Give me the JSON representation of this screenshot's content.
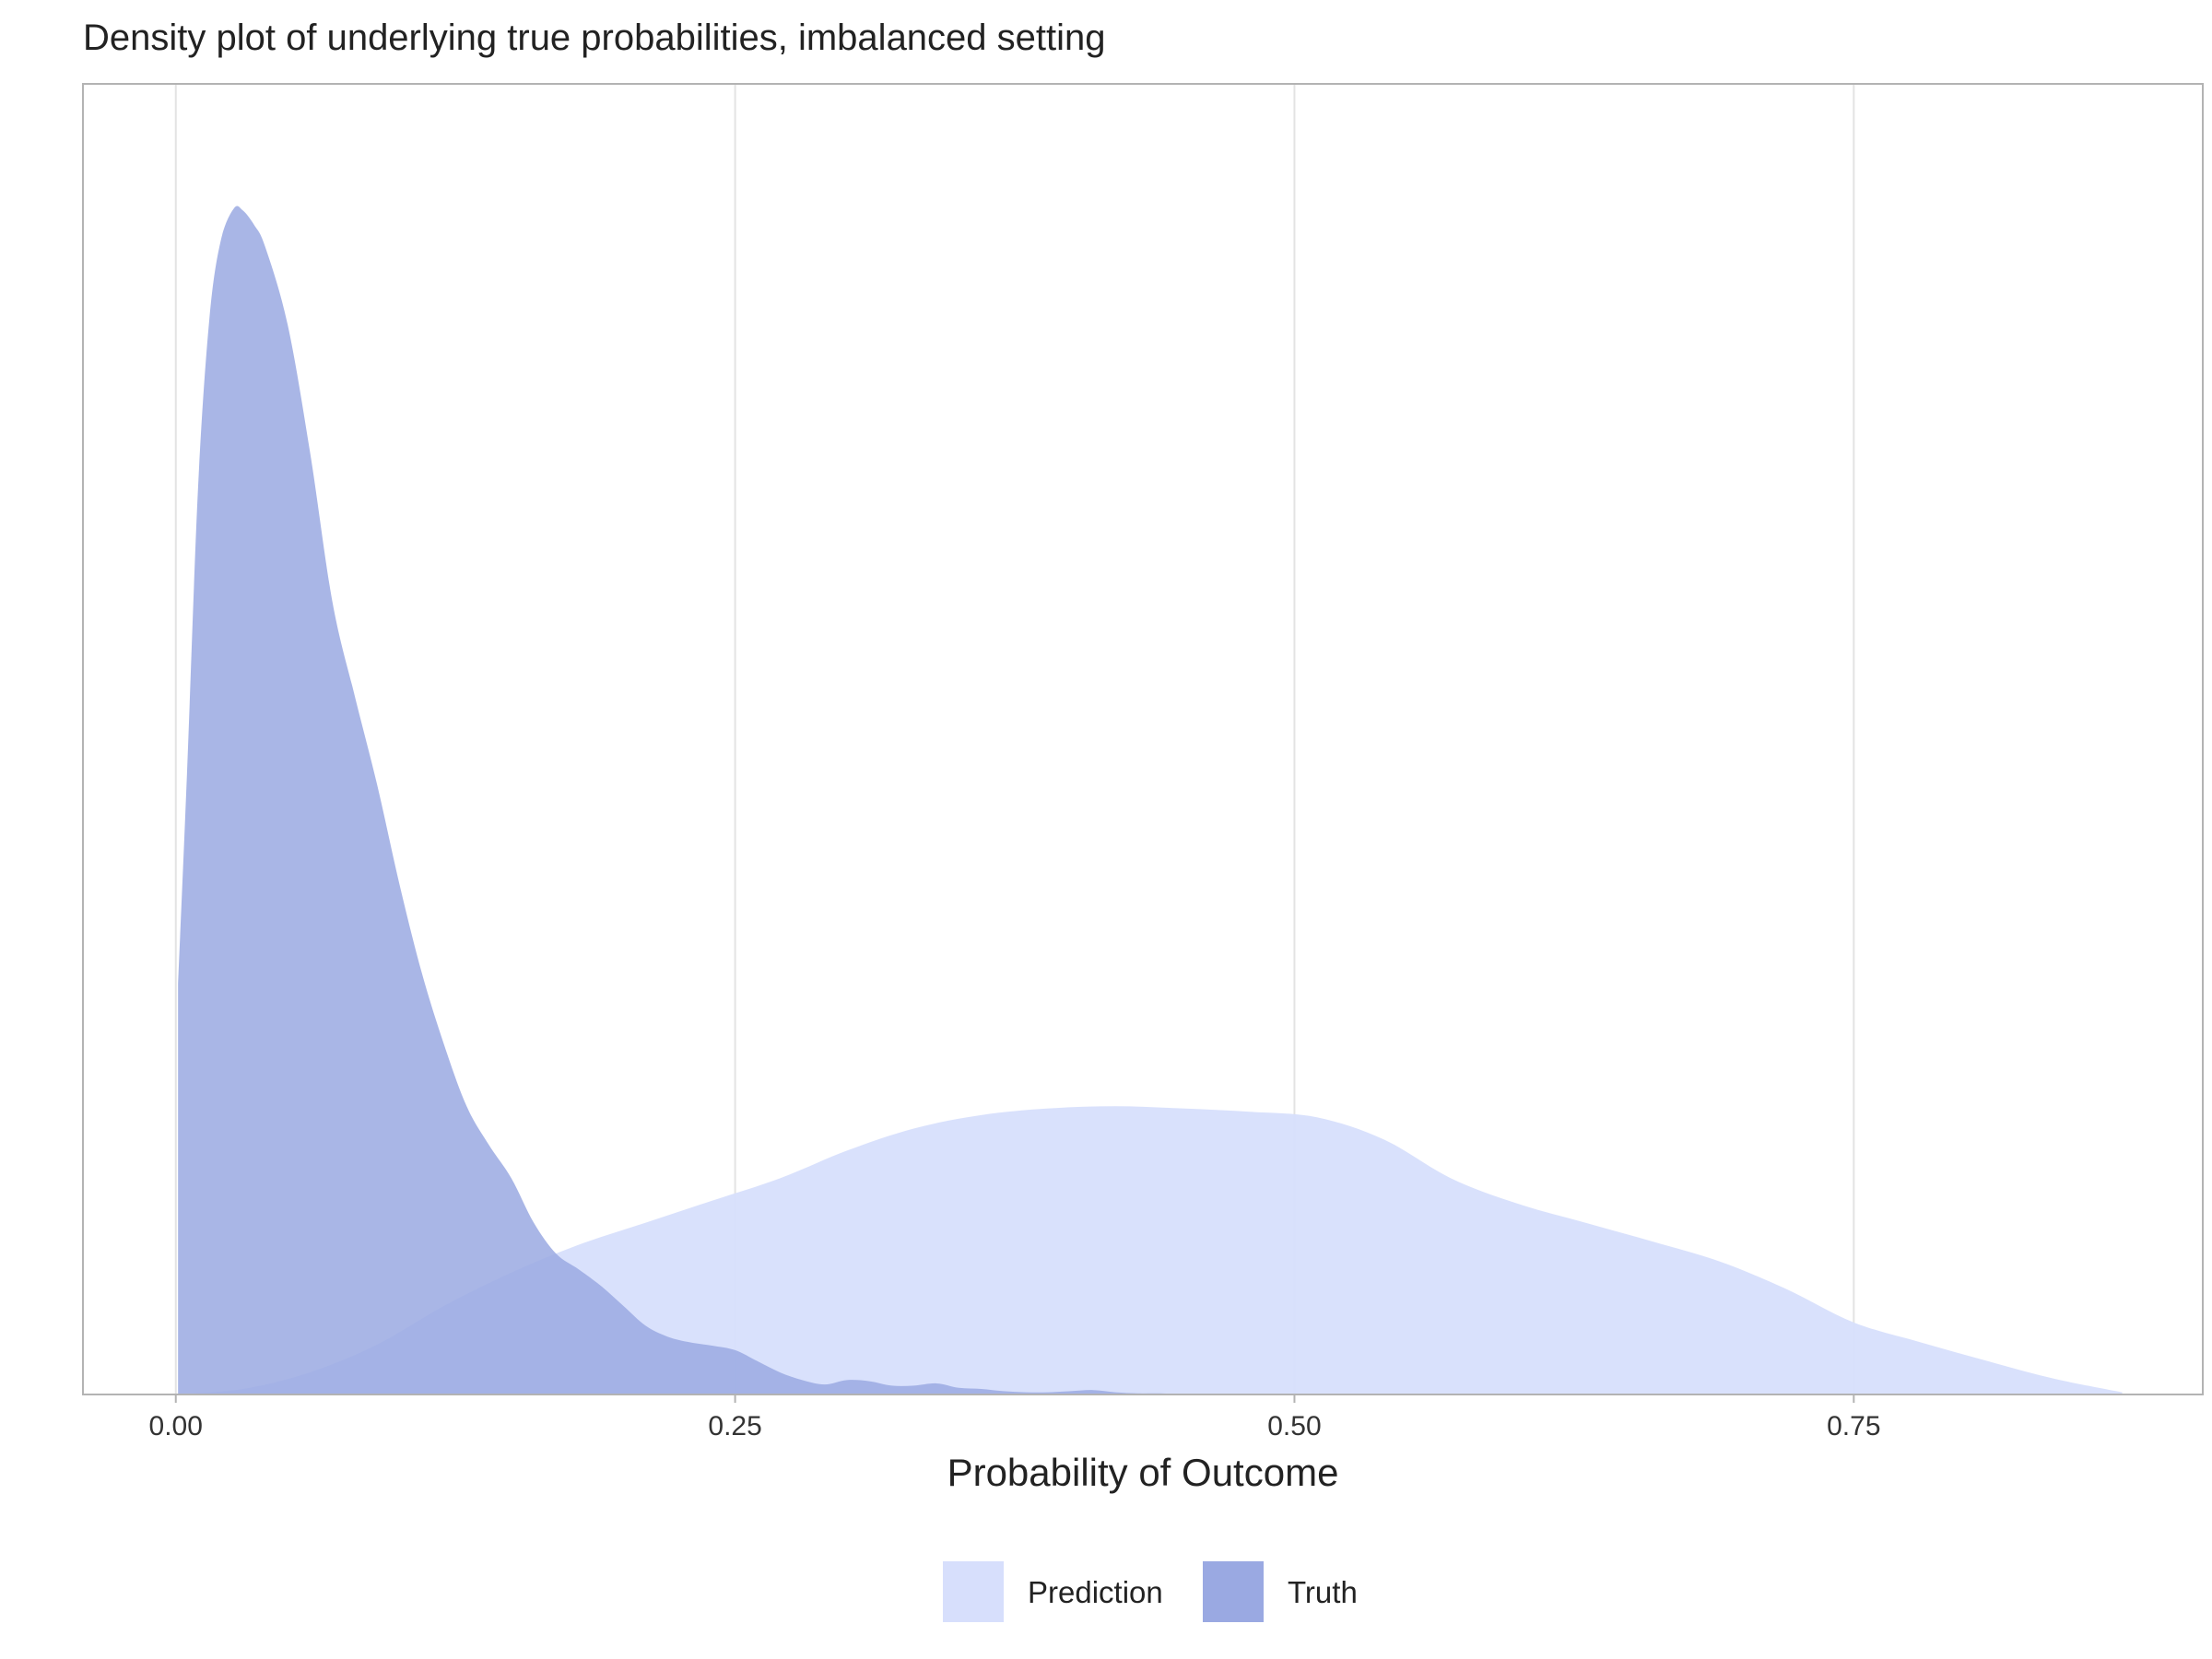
{
  "chart_data": {
    "type": "area",
    "title": "Density plot of underlying true probabilities, imbalanced setting",
    "xlabel": "Probability of Outcome",
    "ylabel": "",
    "xlim": [
      -0.0415,
      0.906
    ],
    "ylim": [
      0,
      10.7
    ],
    "x_ticks": [
      {
        "value": 0.0,
        "label": "0.00"
      },
      {
        "value": 0.25,
        "label": "0.25"
      },
      {
        "value": 0.5,
        "label": "0.50"
      },
      {
        "value": 0.75,
        "label": "0.75"
      }
    ],
    "grid": "vertical major lines only",
    "legend_position": "bottom",
    "series": [
      {
        "name": "Prediction",
        "color": "#d7dffc",
        "x": [
          0.0,
          0.03,
          0.06,
          0.09,
          0.12,
          0.15,
          0.18,
          0.21,
          0.24,
          0.27,
          0.3,
          0.33,
          0.36,
          0.39,
          0.42,
          0.45,
          0.48,
          0.51,
          0.54,
          0.57,
          0.6,
          0.63,
          0.66,
          0.69,
          0.72,
          0.75,
          0.78,
          0.81,
          0.84,
          0.87
        ],
        "y": [
          0.0,
          0.05,
          0.2,
          0.45,
          0.8,
          1.1,
          1.35,
          1.55,
          1.75,
          1.95,
          2.2,
          2.4,
          2.52,
          2.58,
          2.6,
          2.58,
          2.55,
          2.5,
          2.3,
          1.95,
          1.72,
          1.55,
          1.38,
          1.2,
          0.95,
          0.65,
          0.47,
          0.3,
          0.14,
          0.02
        ]
      },
      {
        "name": "Truth",
        "color": "#9aa9e2",
        "x": [
          0.001,
          0.005,
          0.01,
          0.015,
          0.02,
          0.026,
          0.03,
          0.035,
          0.04,
          0.05,
          0.06,
          0.07,
          0.08,
          0.09,
          0.1,
          0.11,
          0.12,
          0.13,
          0.14,
          0.15,
          0.16,
          0.17,
          0.18,
          0.19,
          0.2,
          0.21,
          0.22,
          0.23,
          0.24,
          0.25,
          0.26,
          0.27,
          0.28,
          0.29,
          0.3,
          0.31,
          0.32,
          0.33,
          0.34,
          0.35,
          0.36,
          0.37,
          0.38,
          0.39,
          0.4,
          0.41,
          0.42,
          0.43,
          0.44,
          0.45
        ],
        "y": [
          3.7,
          5.6,
          8.2,
          9.7,
          10.4,
          10.7,
          10.68,
          10.55,
          10.35,
          9.65,
          8.5,
          7.15,
          6.3,
          5.5,
          4.6,
          3.8,
          3.15,
          2.6,
          2.25,
          1.95,
          1.55,
          1.27,
          1.13,
          0.98,
          0.8,
          0.62,
          0.52,
          0.47,
          0.44,
          0.4,
          0.3,
          0.2,
          0.13,
          0.09,
          0.13,
          0.12,
          0.08,
          0.08,
          0.1,
          0.06,
          0.05,
          0.03,
          0.02,
          0.02,
          0.03,
          0.04,
          0.02,
          0.01,
          0.01,
          0.0
        ]
      }
    ]
  }
}
